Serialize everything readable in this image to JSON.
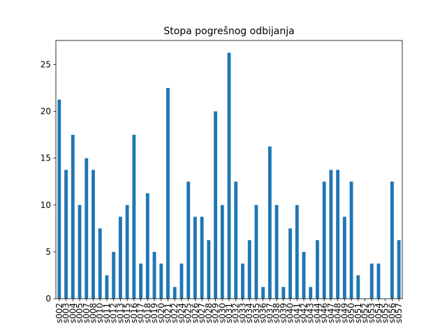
{
  "chart_data": {
    "type": "bar",
    "title": "Stopa pogrešnog odbijanja",
    "xlabel": "",
    "ylabel": "",
    "categories": [
      "s002",
      "s003",
      "s004",
      "s005",
      "s007",
      "s008",
      "s010",
      "s011",
      "s012",
      "s013",
      "s015",
      "s016",
      "s017",
      "s018",
      "s019",
      "s020",
      "s021",
      "s022",
      "s024",
      "s025",
      "s026",
      "s027",
      "s028",
      "s029",
      "s030",
      "s031",
      "s032",
      "s033",
      "s034",
      "s035",
      "s036",
      "s037",
      "s038",
      "s039",
      "s040",
      "s041",
      "s042",
      "s043",
      "s044",
      "s046",
      "s047",
      "s048",
      "s049",
      "s050",
      "s051",
      "s052",
      "s053",
      "s054",
      "s055",
      "s056",
      "s057"
    ],
    "values": [
      21.25,
      13.75,
      17.5,
      10.0,
      15.0,
      13.75,
      7.5,
      2.5,
      5.0,
      8.75,
      10.0,
      17.5,
      3.75,
      11.25,
      5.0,
      3.75,
      22.5,
      1.25,
      3.75,
      12.5,
      8.75,
      8.75,
      6.25,
      20.0,
      10.0,
      26.25,
      12.5,
      3.75,
      6.25,
      10.0,
      1.25,
      16.25,
      10.0,
      1.25,
      7.5,
      10.0,
      5.0,
      1.25,
      6.25,
      12.5,
      13.75,
      13.75,
      8.75,
      12.5,
      2.5,
      0.0,
      3.75,
      3.75,
      0.0,
      12.5,
      6.25
    ],
    "ylim": [
      0,
      27.5625
    ],
    "yticks": [
      0,
      5,
      10,
      15,
      20,
      25
    ],
    "grid": false,
    "legend": "none",
    "bar_color": "#1f77b4"
  }
}
